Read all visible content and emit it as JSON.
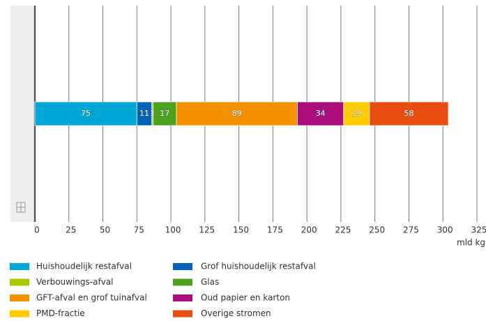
{
  "chart_data": {
    "type": "bar",
    "orientation": "horizontal",
    "stacked": true,
    "x_label": "mld kg",
    "categories": [
      null
    ],
    "series": [
      {
        "name": "Huishoudelijk restafval",
        "color": "#00a6d6",
        "values": [
          75
        ]
      },
      {
        "name": "Grof huishoudelijk restafval",
        "color": "#0062b8",
        "values": [
          11
        ]
      },
      {
        "name": "Verbouwings-afval",
        "color": "#a8c800",
        "values": [
          1
        ]
      },
      {
        "name": "Glas",
        "color": "#4ca11e",
        "values": [
          17
        ]
      },
      {
        "name": "GFT-afval en grof tuinafval",
        "color": "#f39200",
        "values": [
          89
        ]
      },
      {
        "name": "Oud papier en karton",
        "color": "#a90e7c",
        "values": [
          34
        ]
      },
      {
        "name": "PMD-fractie",
        "color": "#ffcc00",
        "values": [
          19
        ]
      },
      {
        "name": "Overige stromen",
        "color": "#e84e10",
        "values": [
          58
        ]
      }
    ],
    "xlim": [
      0,
      325
    ],
    "xticks": [
      0,
      25,
      50,
      75,
      100,
      125,
      150,
      175,
      200,
      225,
      250,
      275,
      300,
      325
    ],
    "grid": true,
    "legend": "bottom"
  }
}
